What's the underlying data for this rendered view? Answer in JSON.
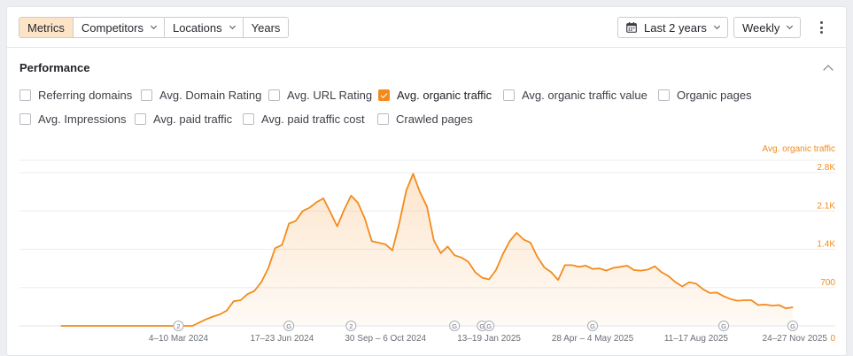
{
  "toolbar": {
    "tabs": [
      {
        "label": "Metrics",
        "active": true,
        "dropdown": false
      },
      {
        "label": "Competitors",
        "active": false,
        "dropdown": true
      },
      {
        "label": "Locations",
        "active": false,
        "dropdown": true
      },
      {
        "label": "Years",
        "active": false,
        "dropdown": false
      }
    ],
    "date_range": "Last 2 years",
    "granularity": "Weekly",
    "date_icon": "calendar-icon",
    "more_icon": "kebab-menu-icon"
  },
  "performance": {
    "title": "Performance",
    "collapse_icon": "chevron-up-icon",
    "metrics": [
      {
        "label": "Referring domains",
        "checked": false
      },
      {
        "label": "Avg. Domain Rating",
        "checked": false
      },
      {
        "label": "Avg. URL Rating",
        "checked": false
      },
      {
        "label": "Avg. organic traffic",
        "checked": true
      },
      {
        "label": "Avg. organic traffic value",
        "checked": false
      },
      {
        "label": "Organic pages",
        "checked": false
      },
      {
        "label": "Avg. Impressions",
        "checked": false
      },
      {
        "label": "Avg. paid traffic",
        "checked": false
      },
      {
        "label": "Avg. paid traffic cost",
        "checked": false
      },
      {
        "label": "Crawled pages",
        "checked": false
      }
    ]
  },
  "colors": {
    "accent": "#f38b1c",
    "active_tab": "#fde4c7",
    "grid": "#e9ebee"
  },
  "chart_data": {
    "type": "area",
    "series": [
      {
        "name": "Avg. organic traffic",
        "color": "#f38b1c",
        "values": [
          0,
          0,
          0,
          0,
          0,
          0,
          0,
          0,
          0,
          0,
          0,
          0,
          0,
          0,
          0,
          0,
          0,
          0,
          0,
          0,
          60,
          120,
          170,
          210,
          280,
          450,
          470,
          580,
          640,
          800,
          1050,
          1420,
          1480,
          1870,
          1920,
          2100,
          2160,
          2260,
          2330,
          2080,
          1820,
          2120,
          2380,
          2250,
          1960,
          1550,
          1520,
          1490,
          1380,
          1880,
          2470,
          2780,
          2440,
          2180,
          1560,
          1330,
          1450,
          1290,
          1250,
          1170,
          980,
          880,
          850,
          1020,
          1310,
          1550,
          1700,
          1580,
          1520,
          1260,
          1070,
          980,
          840,
          1110,
          1110,
          1080,
          1100,
          1040,
          1050,
          1010,
          1060,
          1080,
          1100,
          1020,
          1010,
          1030,
          1090,
          980,
          910,
          800,
          720,
          800,
          770,
          670,
          600,
          610,
          540,
          490,
          460,
          470,
          470,
          380,
          390,
          370,
          380,
          320,
          340
        ]
      }
    ],
    "y_axis_label": "Avg. organic traffic",
    "y_ticks": [
      "700",
      "1.4K",
      "2.1K",
      "2.8K"
    ],
    "y_tick_values": [
      700,
      1400,
      2100,
      2800
    ],
    "y_zero_label": "0",
    "ylim": [
      0,
      2800
    ],
    "x_ticks": [
      {
        "label": "4–10 Mar 2024",
        "index": 17
      },
      {
        "label": "17–23 Jun 2024",
        "index": 32
      },
      {
        "label": "30 Sep – 6 Oct 2024",
        "index": 47
      },
      {
        "label": "13–19 Jan 2025",
        "index": 62
      },
      {
        "label": "28 Apr – 4 May 2025",
        "index": 77
      },
      {
        "label": "11–17 Aug 2025",
        "index": 92
      },
      {
        "label": "24–27 Nov 2025",
        "index": 107
      }
    ],
    "annotations": [
      {
        "label": "2",
        "index": 17
      },
      {
        "label": "G",
        "index": 33
      },
      {
        "label": "2",
        "index": 42
      },
      {
        "label": "G",
        "index": 57
      },
      {
        "label": "G",
        "index": 61
      },
      {
        "label": "G",
        "index": 62
      },
      {
        "label": "G",
        "index": 77
      },
      {
        "label": "G",
        "index": 96
      },
      {
        "label": "G",
        "index": 106
      }
    ],
    "grid": true
  }
}
